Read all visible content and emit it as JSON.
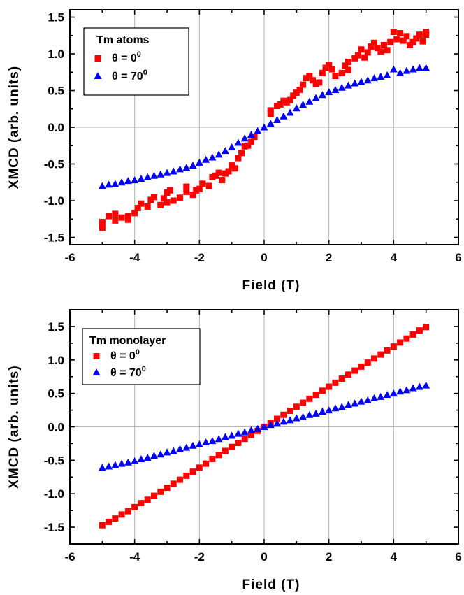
{
  "chart_data": [
    {
      "type": "scatter",
      "xlabel": "Field (T)",
      "ylabel": "XMCD (arb. units)",
      "xlim": [
        -6,
        6
      ],
      "ylim": [
        -1.6,
        1.6
      ],
      "xticks": [
        "-6",
        "-4",
        "-2",
        "0",
        "2",
        "4",
        "6"
      ],
      "yticks": [
        "1.5",
        "1.0",
        "0.5",
        "0.0",
        "-0.5",
        "-1.0",
        "-1.5"
      ],
      "grid": true,
      "legend": {
        "title": "Tm atoms",
        "placement": "top-left",
        "entries": [
          {
            "label": "θ  = 0",
            "sup": "0"
          },
          {
            "label": "θ  = 70",
            "sup": "0"
          }
        ]
      },
      "series": [
        {
          "name": "θ = 0°",
          "marker": "square",
          "color": "#ff0000",
          "points": [
            [
              -5.0,
              -1.37
            ],
            [
              -5.0,
              -1.29
            ],
            [
              -4.8,
              -1.21
            ],
            [
              -4.6,
              -1.18
            ],
            [
              -4.6,
              -1.27
            ],
            [
              -4.4,
              -1.23
            ],
            [
              -4.2,
              -1.26
            ],
            [
              -4.2,
              -1.21
            ],
            [
              -4.0,
              -1.17
            ],
            [
              -3.9,
              -1.1
            ],
            [
              -3.8,
              -1.04
            ],
            [
              -3.6,
              -1.08
            ],
            [
              -3.5,
              -0.99
            ],
            [
              -3.4,
              -0.95
            ],
            [
              -3.2,
              -1.06
            ],
            [
              -3.1,
              -0.97
            ],
            [
              -3.0,
              -0.89
            ],
            [
              -3.0,
              -1.02
            ],
            [
              -2.9,
              -0.86
            ],
            [
              -2.8,
              -1.0
            ],
            [
              -2.6,
              -0.96
            ],
            [
              -2.4,
              -0.88
            ],
            [
              -2.4,
              -0.81
            ],
            [
              -2.2,
              -0.92
            ],
            [
              -2.1,
              -0.86
            ],
            [
              -2.0,
              -0.84
            ],
            [
              -1.9,
              -0.77
            ],
            [
              -1.7,
              -0.8
            ],
            [
              -1.6,
              -0.68
            ],
            [
              -1.5,
              -0.66
            ],
            [
              -1.4,
              -0.62
            ],
            [
              -1.3,
              -0.72
            ],
            [
              -1.2,
              -0.63
            ],
            [
              -1.1,
              -0.6
            ],
            [
              -1.0,
              -0.52
            ],
            [
              -0.9,
              -0.56
            ],
            [
              -0.8,
              -0.42
            ],
            [
              -0.7,
              -0.35
            ],
            [
              -0.6,
              -0.26
            ],
            [
              -0.5,
              -0.25
            ],
            [
              -0.4,
              -0.2
            ],
            [
              -0.3,
              -0.13
            ],
            [
              0.2,
              0.18
            ],
            [
              0.2,
              0.23
            ],
            [
              0.4,
              0.29
            ],
            [
              0.5,
              0.31
            ],
            [
              0.6,
              0.36
            ],
            [
              0.7,
              0.34
            ],
            [
              0.8,
              0.37
            ],
            [
              0.9,
              0.43
            ],
            [
              1.0,
              0.47
            ],
            [
              1.1,
              0.51
            ],
            [
              1.2,
              0.58
            ],
            [
              1.3,
              0.67
            ],
            [
              1.4,
              0.7
            ],
            [
              1.5,
              0.64
            ],
            [
              1.6,
              0.59
            ],
            [
              1.7,
              0.61
            ],
            [
              1.8,
              0.74
            ],
            [
              1.9,
              0.81
            ],
            [
              2.0,
              0.85
            ],
            [
              2.1,
              0.79
            ],
            [
              2.2,
              0.7
            ],
            [
              2.4,
              0.74
            ],
            [
              2.5,
              0.84
            ],
            [
              2.6,
              0.78
            ],
            [
              2.6,
              0.89
            ],
            [
              2.8,
              0.94
            ],
            [
              2.9,
              0.98
            ],
            [
              3.0,
              1.06
            ],
            [
              3.1,
              0.95
            ],
            [
              3.2,
              1.02
            ],
            [
              3.3,
              1.1
            ],
            [
              3.4,
              1.15
            ],
            [
              3.5,
              1.08
            ],
            [
              3.6,
              1.03
            ],
            [
              3.7,
              1.12
            ],
            [
              3.8,
              1.05
            ],
            [
              3.9,
              1.16
            ],
            [
              4.0,
              1.3
            ],
            [
              4.1,
              1.2
            ],
            [
              4.2,
              1.28
            ],
            [
              4.3,
              1.18
            ],
            [
              4.4,
              1.24
            ],
            [
              4.5,
              1.12
            ],
            [
              4.6,
              1.16
            ],
            [
              4.7,
              1.21
            ],
            [
              4.8,
              1.26
            ],
            [
              4.9,
              1.17
            ],
            [
              5.0,
              1.26
            ],
            [
              5.0,
              1.3
            ]
          ]
        },
        {
          "name": "θ = 70°",
          "marker": "triangle",
          "color": "#0000ff",
          "points": [
            [
              -5.0,
              -0.8
            ],
            [
              -4.8,
              -0.78
            ],
            [
              -4.6,
              -0.77
            ],
            [
              -4.4,
              -0.75
            ],
            [
              -4.2,
              -0.73
            ],
            [
              -4.0,
              -0.72
            ],
            [
              -3.8,
              -0.7
            ],
            [
              -3.6,
              -0.68
            ],
            [
              -3.4,
              -0.66
            ],
            [
              -3.2,
              -0.64
            ],
            [
              -3.0,
              -0.62
            ],
            [
              -2.8,
              -0.6
            ],
            [
              -2.6,
              -0.57
            ],
            [
              -2.4,
              -0.55
            ],
            [
              -2.2,
              -0.52
            ],
            [
              -2.0,
              -0.48
            ],
            [
              -1.8,
              -0.44
            ],
            [
              -1.6,
              -0.41
            ],
            [
              -1.4,
              -0.37
            ],
            [
              -1.2,
              -0.32
            ],
            [
              -1.0,
              -0.27
            ],
            [
              -0.8,
              -0.21
            ],
            [
              -0.6,
              -0.15
            ],
            [
              -0.4,
              -0.1
            ],
            [
              -0.2,
              -0.05
            ],
            [
              0.0,
              0.0
            ],
            [
              0.2,
              0.05
            ],
            [
              0.4,
              0.1
            ],
            [
              0.6,
              0.15
            ],
            [
              0.8,
              0.2
            ],
            [
              1.0,
              0.26
            ],
            [
              1.2,
              0.31
            ],
            [
              1.4,
              0.35
            ],
            [
              1.6,
              0.4
            ],
            [
              1.8,
              0.44
            ],
            [
              2.0,
              0.48
            ],
            [
              2.2,
              0.51
            ],
            [
              2.4,
              0.54
            ],
            [
              2.6,
              0.57
            ],
            [
              2.8,
              0.6
            ],
            [
              3.0,
              0.62
            ],
            [
              3.2,
              0.64
            ],
            [
              3.4,
              0.67
            ],
            [
              3.6,
              0.69
            ],
            [
              3.8,
              0.71
            ],
            [
              4.0,
              0.79
            ],
            [
              4.2,
              0.74
            ],
            [
              4.4,
              0.77
            ],
            [
              4.6,
              0.79
            ],
            [
              4.8,
              0.81
            ],
            [
              5.0,
              0.81
            ]
          ]
        }
      ]
    },
    {
      "type": "scatter",
      "xlabel": "Field (T)",
      "ylabel": "XMCD (arb. units)",
      "xlim": [
        -6,
        6
      ],
      "ylim": [
        -1.75,
        1.75
      ],
      "xticks": [
        "-6",
        "-4",
        "-2",
        "0",
        "2",
        "4",
        "6"
      ],
      "yticks": [
        "1.5",
        "1.0",
        "0.5",
        "0.0",
        "-0.5",
        "-1.0",
        "-1.5"
      ],
      "grid": true,
      "legend": {
        "title": "Tm monolayer",
        "placement": "top-left",
        "entries": [
          {
            "label": "θ  = 0",
            "sup": "0"
          },
          {
            "label": "θ  = 70",
            "sup": "0"
          }
        ]
      },
      "series": [
        {
          "name": "θ = 0°",
          "marker": "square",
          "color": "#ff0000",
          "points": [
            [
              -5.0,
              -1.47
            ],
            [
              -4.8,
              -1.42
            ],
            [
              -4.6,
              -1.37
            ],
            [
              -4.4,
              -1.31
            ],
            [
              -4.2,
              -1.26
            ],
            [
              -4.0,
              -1.2
            ],
            [
              -3.8,
              -1.14
            ],
            [
              -3.6,
              -1.09
            ],
            [
              -3.4,
              -1.03
            ],
            [
              -3.2,
              -0.97
            ],
            [
              -3.0,
              -0.91
            ],
            [
              -2.8,
              -0.85
            ],
            [
              -2.6,
              -0.79
            ],
            [
              -2.4,
              -0.73
            ],
            [
              -2.2,
              -0.67
            ],
            [
              -2.0,
              -0.61
            ],
            [
              -1.8,
              -0.55
            ],
            [
              -1.6,
              -0.48
            ],
            [
              -1.4,
              -0.42
            ],
            [
              -1.2,
              -0.36
            ],
            [
              -1.0,
              -0.3
            ],
            [
              -0.8,
              -0.24
            ],
            [
              -0.6,
              -0.18
            ],
            [
              -0.4,
              -0.12
            ],
            [
              -0.2,
              -0.06
            ],
            [
              0.0,
              0.0
            ],
            [
              0.2,
              0.06
            ],
            [
              0.4,
              0.12
            ],
            [
              0.6,
              0.18
            ],
            [
              0.8,
              0.24
            ],
            [
              1.0,
              0.3
            ],
            [
              1.2,
              0.36
            ],
            [
              1.4,
              0.42
            ],
            [
              1.6,
              0.48
            ],
            [
              1.8,
              0.54
            ],
            [
              2.0,
              0.6
            ],
            [
              2.2,
              0.66
            ],
            [
              2.4,
              0.72
            ],
            [
              2.6,
              0.78
            ],
            [
              2.8,
              0.84
            ],
            [
              3.0,
              0.9
            ],
            [
              3.2,
              0.96
            ],
            [
              3.4,
              1.02
            ],
            [
              3.6,
              1.08
            ],
            [
              3.8,
              1.14
            ],
            [
              4.0,
              1.2
            ],
            [
              4.2,
              1.26
            ],
            [
              4.4,
              1.32
            ],
            [
              4.6,
              1.38
            ],
            [
              4.8,
              1.44
            ],
            [
              5.0,
              1.49
            ]
          ]
        },
        {
          "name": "θ = 70°",
          "marker": "triangle",
          "color": "#0000ff",
          "points": [
            [
              -5.0,
              -0.61
            ],
            [
              -4.8,
              -0.59
            ],
            [
              -4.6,
              -0.57
            ],
            [
              -4.4,
              -0.55
            ],
            [
              -4.2,
              -0.53
            ],
            [
              -4.0,
              -0.51
            ],
            [
              -3.8,
              -0.48
            ],
            [
              -3.6,
              -0.46
            ],
            [
              -3.4,
              -0.43
            ],
            [
              -3.2,
              -0.41
            ],
            [
              -3.0,
              -0.38
            ],
            [
              -2.8,
              -0.36
            ],
            [
              -2.6,
              -0.33
            ],
            [
              -2.4,
              -0.31
            ],
            [
              -2.2,
              -0.28
            ],
            [
              -2.0,
              -0.26
            ],
            [
              -1.8,
              -0.23
            ],
            [
              -1.6,
              -0.21
            ],
            [
              -1.4,
              -0.18
            ],
            [
              -1.2,
              -0.15
            ],
            [
              -1.0,
              -0.13
            ],
            [
              -0.8,
              -0.1
            ],
            [
              -0.6,
              -0.08
            ],
            [
              -0.4,
              -0.05
            ],
            [
              -0.2,
              -0.03
            ],
            [
              0.0,
              0.0
            ],
            [
              0.2,
              0.03
            ],
            [
              0.4,
              0.05
            ],
            [
              0.6,
              0.08
            ],
            [
              0.8,
              0.1
            ],
            [
              1.0,
              0.13
            ],
            [
              1.2,
              0.15
            ],
            [
              1.4,
              0.18
            ],
            [
              1.6,
              0.2
            ],
            [
              1.8,
              0.23
            ],
            [
              2.0,
              0.25
            ],
            [
              2.2,
              0.28
            ],
            [
              2.4,
              0.3
            ],
            [
              2.6,
              0.33
            ],
            [
              2.8,
              0.35
            ],
            [
              3.0,
              0.38
            ],
            [
              3.2,
              0.4
            ],
            [
              3.4,
              0.43
            ],
            [
              3.6,
              0.45
            ],
            [
              3.8,
              0.48
            ],
            [
              4.0,
              0.5
            ],
            [
              4.2,
              0.53
            ],
            [
              4.4,
              0.55
            ],
            [
              4.6,
              0.58
            ],
            [
              4.8,
              0.6
            ],
            [
              5.0,
              0.62
            ]
          ]
        }
      ]
    }
  ]
}
